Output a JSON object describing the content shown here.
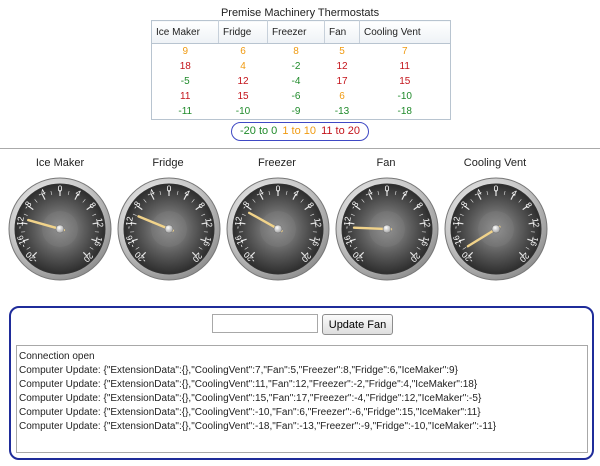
{
  "title": "Premise Machinery Thermostats",
  "table": {
    "headers": [
      "Ice Maker",
      "Fridge",
      "Freezer",
      "Fan",
      "Cooling Vent"
    ],
    "rows": [
      [
        "9",
        "6",
        "8",
        "5",
        "7"
      ],
      [
        "18",
        "4",
        "-2",
        "12",
        "11"
      ],
      [
        "-5",
        "12",
        "-4",
        "17",
        "15"
      ],
      [
        "11",
        "15",
        "-6",
        "6",
        "-10"
      ],
      [
        "-11",
        "-10",
        "-9",
        "-13",
        "-18"
      ]
    ]
  },
  "legend": {
    "green": "-20 to 0",
    "orange": "1 to 10",
    "red": "11 to 20"
  },
  "colors": {
    "green": "#1f8a2a",
    "orange": "#f09a10",
    "red": "#c4141b",
    "panel_border": "#1f2c9a",
    "legend_border": "#3f49c4"
  },
  "gauges": [
    {
      "label": "Ice Maker",
      "value": -11
    },
    {
      "label": "Fridge",
      "value": -10
    },
    {
      "label": "Freezer",
      "value": -9
    },
    {
      "label": "Fan",
      "value": -13
    },
    {
      "label": "Cooling Vent",
      "value": -18
    }
  ],
  "gauge_ticks": [
    "-20",
    "-16",
    "-12",
    "-8",
    "-4",
    "0",
    "4",
    "8",
    "12",
    "16",
    "20"
  ],
  "control": {
    "input_value": "",
    "button_label": "Update Fan"
  },
  "log": [
    "Connection open",
    "Computer Update: {\"ExtensionData\":{},\"CoolingVent\":7,\"Fan\":5,\"Freezer\":8,\"Fridge\":6,\"IceMaker\":9}",
    "Computer Update: {\"ExtensionData\":{},\"CoolingVent\":11,\"Fan\":12,\"Freezer\":-2,\"Fridge\":4,\"IceMaker\":18}",
    "Computer Update: {\"ExtensionData\":{},\"CoolingVent\":15,\"Fan\":17,\"Freezer\":-4,\"Fridge\":12,\"IceMaker\":-5}",
    "Computer Update: {\"ExtensionData\":{},\"CoolingVent\":-10,\"Fan\":6,\"Freezer\":-6,\"Fridge\":15,\"IceMaker\":11}",
    "Computer Update: {\"ExtensionData\":{},\"CoolingVent\":-18,\"Fan\":-13,\"Freezer\":-9,\"Fridge\":-10,\"IceMaker\":-11}"
  ]
}
